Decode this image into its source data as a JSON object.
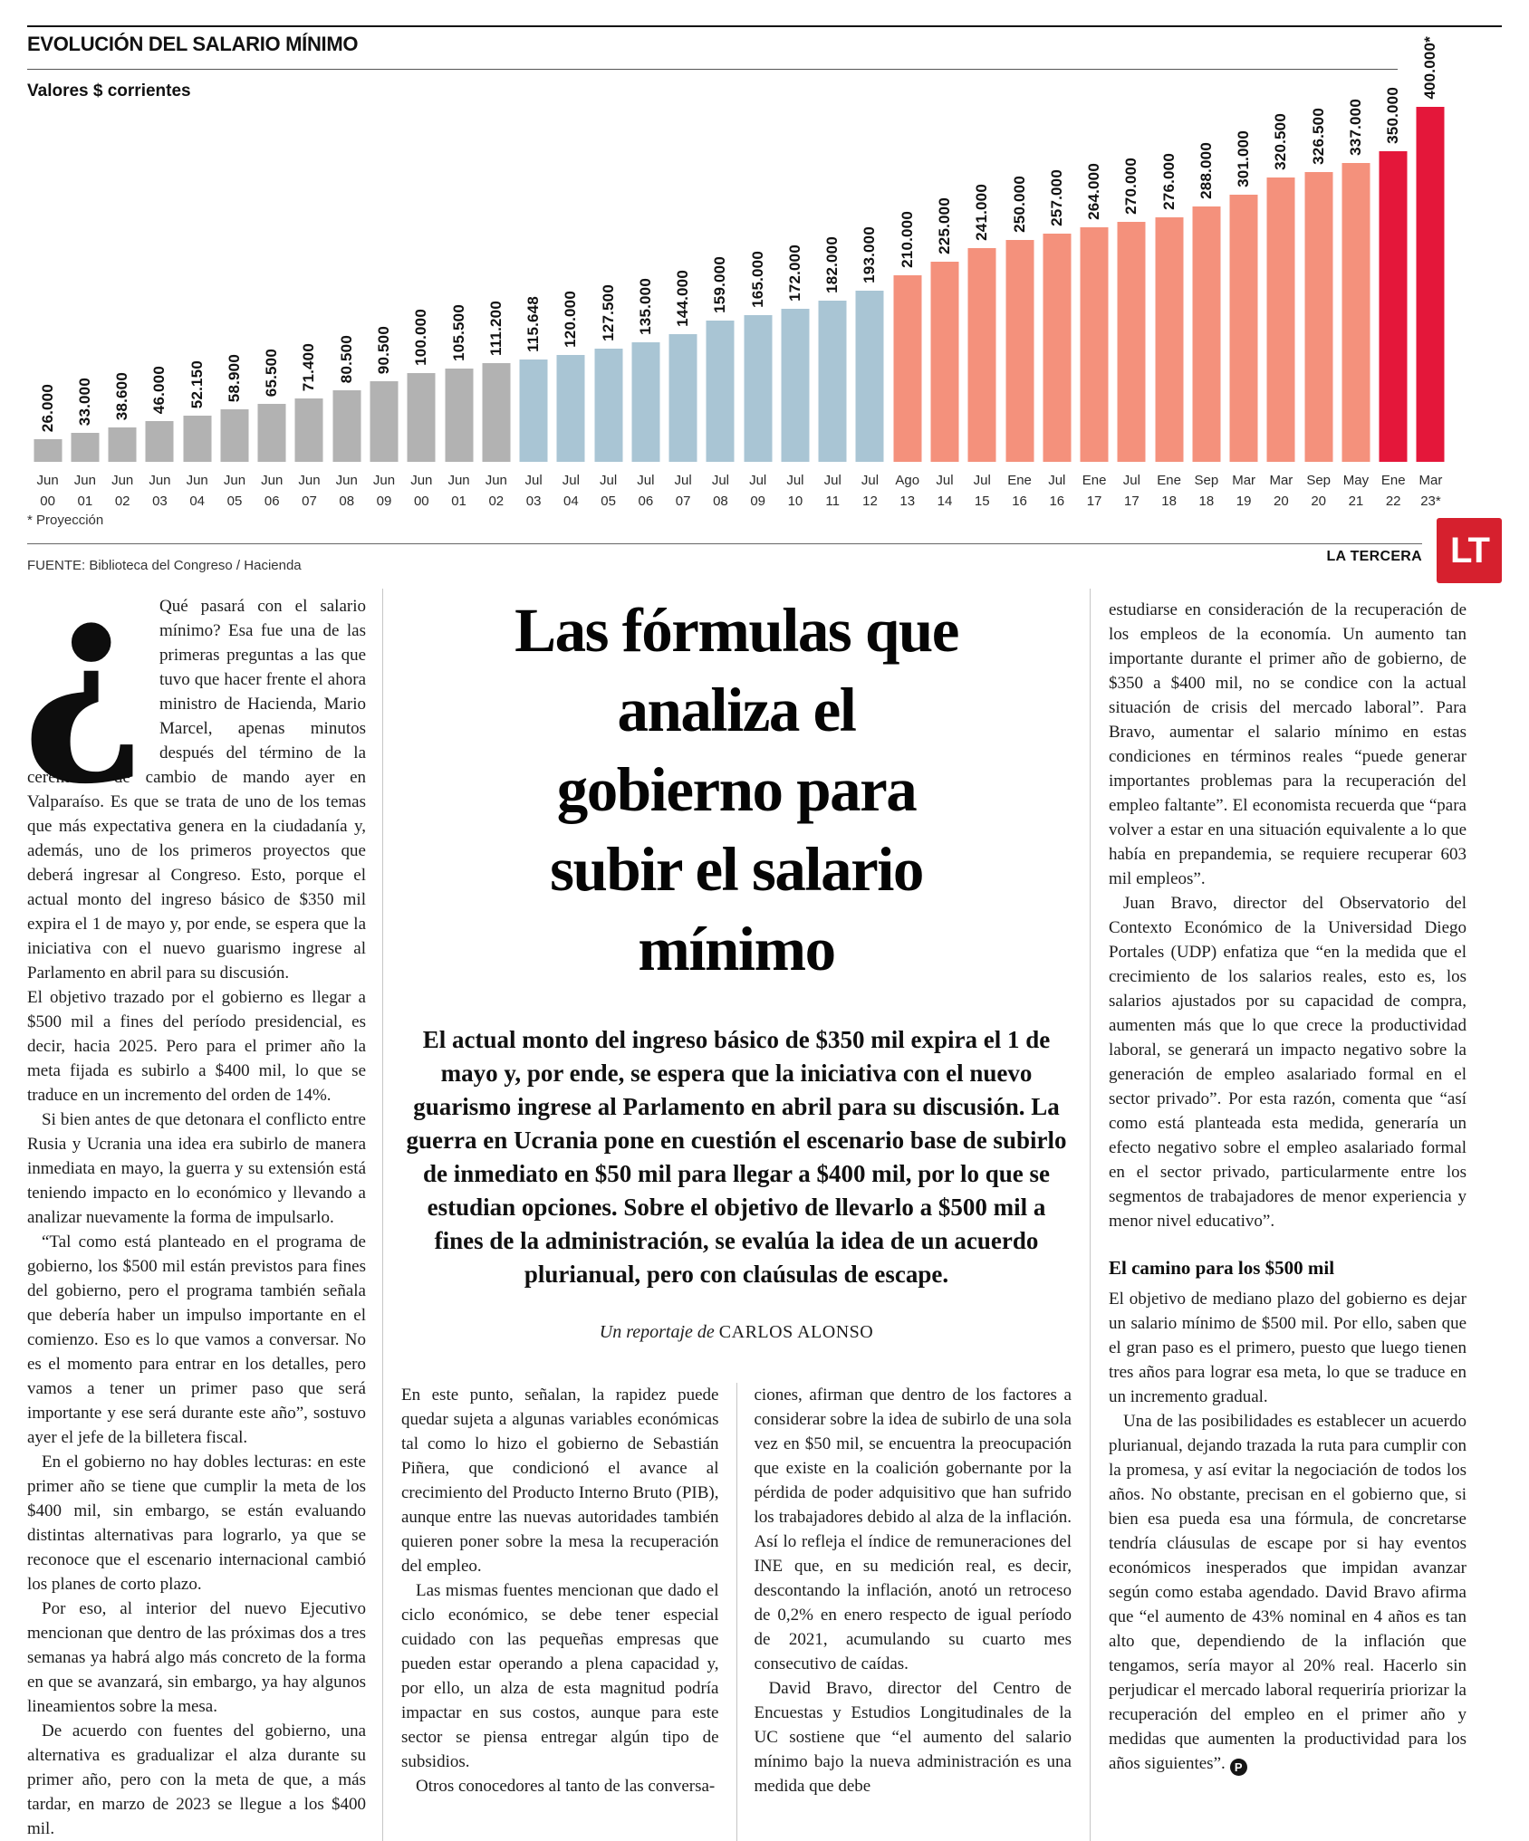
{
  "chart": {
    "title": "EVOLUCIÓN DEL SALARIO MÍNIMO",
    "subtitle": "Valores $ corrientes",
    "footnote": "* Proyección",
    "source": "FUENTE: Biblioteca del Congreso / Hacienda",
    "brand_name": "LA TERCERA",
    "logo_text": "LT",
    "logo_color": "#d6202e"
  },
  "chart_data": {
    "type": "bar",
    "title": "EVOLUCIÓN DEL SALARIO MÍNIMO",
    "subtitle": "Valores $ corrientes",
    "ylim": [
      0,
      400000
    ],
    "grid": false,
    "categories": [
      [
        "Jun",
        "00"
      ],
      [
        "Jun",
        "01"
      ],
      [
        "Jun",
        "02"
      ],
      [
        "Jun",
        "03"
      ],
      [
        "Jun",
        "04"
      ],
      [
        "Jun",
        "05"
      ],
      [
        "Jun",
        "06"
      ],
      [
        "Jun",
        "07"
      ],
      [
        "Jun",
        "08"
      ],
      [
        "Jun",
        "09"
      ],
      [
        "Jun",
        "00"
      ],
      [
        "Jun",
        "01"
      ],
      [
        "Jun",
        "02"
      ],
      [
        "Jul",
        "03"
      ],
      [
        "Jul",
        "04"
      ],
      [
        "Jul",
        "05"
      ],
      [
        "Jul",
        "06"
      ],
      [
        "Jul",
        "07"
      ],
      [
        "Jul",
        "08"
      ],
      [
        "Jul",
        "09"
      ],
      [
        "Jul",
        "10"
      ],
      [
        "Jul",
        "11"
      ],
      [
        "Jul",
        "12"
      ],
      [
        "Ago",
        "13"
      ],
      [
        "Jul",
        "14"
      ],
      [
        "Jul",
        "15"
      ],
      [
        "Ene",
        "16"
      ],
      [
        "Jul",
        "16"
      ],
      [
        "Ene",
        "17"
      ],
      [
        "Jul",
        "17"
      ],
      [
        "Ene",
        "18"
      ],
      [
        "Sep",
        "18"
      ],
      [
        "Mar",
        "19"
      ],
      [
        "Mar",
        "20"
      ],
      [
        "Sep",
        "20"
      ],
      [
        "May",
        "21"
      ],
      [
        "Ene",
        "22"
      ],
      [
        "Mar",
        "23*"
      ]
    ],
    "values": [
      26000,
      33000,
      38600,
      46000,
      52150,
      58900,
      65500,
      71400,
      80500,
      90500,
      100000,
      105500,
      111200,
      115648,
      120000,
      127500,
      135000,
      144000,
      159000,
      165000,
      172000,
      182000,
      193000,
      210000,
      225000,
      241000,
      250000,
      257000,
      264000,
      270000,
      276000,
      288000,
      301000,
      320500,
      326500,
      337000,
      350000,
      400000
    ],
    "value_labels": [
      "26.000",
      "33.000",
      "38.600",
      "46.000",
      "52.150",
      "58.900",
      "65.500",
      "71.400",
      "80.500",
      "90.500",
      "100.000",
      "105.500",
      "111.200",
      "115.648",
      "120.000",
      "127.500",
      "135.000",
      "144.000",
      "159.000",
      "165.000",
      "172.000",
      "182.000",
      "193.000",
      "210.000",
      "225.000",
      "241.000",
      "250.000",
      "257.000",
      "264.000",
      "270.000",
      "276.000",
      "288.000",
      "301.000",
      "320.500",
      "326.500",
      "337.000",
      "350.000",
      "400.000*"
    ],
    "bar_colors": [
      "gray",
      "gray",
      "gray",
      "gray",
      "gray",
      "gray",
      "gray",
      "gray",
      "gray",
      "gray",
      "gray",
      "gray",
      "gray",
      "blue",
      "blue",
      "blue",
      "blue",
      "blue",
      "blue",
      "blue",
      "blue",
      "blue",
      "blue",
      "salmon",
      "salmon",
      "salmon",
      "salmon",
      "salmon",
      "salmon",
      "salmon",
      "salmon",
      "salmon",
      "salmon",
      "salmon",
      "salmon",
      "salmon",
      "red",
      "red"
    ],
    "palette": {
      "gray": "#b2b2b2",
      "blue": "#a9c5d4",
      "salmon": "#f4917c",
      "red": "#e4173a"
    },
    "legend_position": "none"
  },
  "article": {
    "headline_lines": [
      "Las fórmulas que",
      "analiza el",
      "gobierno para",
      "subir el salario",
      "mínimo"
    ],
    "lede": "El actual monto del ingreso básico de $350 mil expira el 1 de mayo y, por ende, se espera que la iniciativa con el nuevo guarismo ingrese al Parlamento en abril para su discusión. La guerra en Ucrania pone en cuestión el escenario base de subirlo de inmediato en $50 mil para llegar a $400 mil, por lo que se estudian opciones. Sobre el objetivo de llevarlo a $500 mil a fines de la administración, se evalúa la idea de un acuerdo plurianual, pero con claúsulas de escape.",
    "byline_prefix": "Un reportaje de ",
    "byline_author": "CARLOS ALONSO",
    "left": {
      "dropcap": "¿",
      "first_paragraph": "Qué pasará con el salario mínimo? Esa fue una de las primeras preguntas a las que tuvo que hacer frente el ahora ministro de Hacienda, Mario Marcel, apenas minutos después del término de la ceremonia de cambio de mando ayer en Valparaíso. Es que se trata de uno de los temas que más expectativa genera en la ciudadanía y, además, uno de los primeros proyectos que deberá ingresar al Congreso. Esto, porque el actual monto del ingreso básico de $350 mil expira el 1 de mayo y, por ende, se espera que la iniciativa con el nuevo guarismo ingrese al Parlamento en abril para su discusión.",
      "paragraphs": [
        "El objetivo trazado por el gobierno es llegar a $500 mil a fines del período presidencial, es decir, hacia 2025. Pero para el primer año la meta fijada es subirlo a $400 mil, lo que se traduce en un incremento del orden de 14%.",
        "Si bien antes de que detonara el conflicto entre Rusia y Ucrania una idea era subirlo de manera inmediata en mayo, la guerra y su extensión está teniendo impacto en lo económico y llevando a analizar nuevamente la forma de impulsarlo.",
        "“Tal como está planteado en el programa de gobierno, los $500 mil están previstos para fines del gobierno, pero el programa también señala que debería haber un impulso importante en el comienzo. Eso es lo que vamos a conversar. No es el momento para entrar en los detalles, pero vamos a tener un primer paso que será importante y ese será durante este año”, sostuvo ayer el jefe de la billetera fiscal.",
        "En el gobierno no hay dobles lecturas: en este primer año se tiene que cumplir la meta de los $400 mil, sin embargo, se están evaluando distintas alternativas para lograrlo, ya que se reconoce que el escenario internacional cambió los planes de corto plazo.",
        "Por eso, al interior del nuevo Ejecutivo mencionan que dentro de las próximas dos a tres semanas ya habrá algo más concreto de la forma en que se avanzará, sin embargo, ya hay algunos lineamientos sobre la mesa.",
        "De acuerdo con fuentes del gobierno, una alternativa es gradualizar el alza durante su primer año, pero con la meta de que, a más tardar, en marzo de 2023 se llegue a los $400 mil."
      ]
    },
    "center_col_a": [
      "En este punto, señalan, la rapidez puede quedar sujeta a algunas variables económicas tal como lo hizo el gobierno de Sebastián Piñera, que condicionó el avance al crecimiento del Producto Interno Bruto (PIB), aunque entre las nuevas autoridades también quieren poner sobre la mesa la recuperación del empleo.",
      "Las mismas fuentes mencionan que dado el ciclo económico, se debe tener especial cuidado con las pequeñas empresas que pueden estar operando a plena capacidad y, por ello, un alza de esta magnitud podría impactar en sus costos, aunque para este sector se piensa entregar algún tipo de subsidios.",
      "Otros conocedores al tanto de las conversa-"
    ],
    "center_col_b": [
      "ciones, afirman que dentro de los factores a considerar sobre la idea de subirlo de una sola vez en $50 mil, se encuentra la preocupación que existe en la coalición gobernante por la pérdida de poder adquisitivo que han sufrido los trabajadores debido al alza de la inflación. Así lo refleja el índice de remuneraciones del INE que, en su medición real, es decir, descontando la inflación, anotó un retroceso de 0,2% en enero respecto de igual período de 2021, acumulando su cuarto mes consecutivo de caídas.",
      "David Bravo, director del Centro de Encuestas y Estudios Longitudinales de la UC sostiene que “el aumento del salario mínimo bajo la nueva administración es una medida que debe"
    ],
    "right_top": [
      "estudiarse en consideración de la recuperación de los empleos de la economía. Un aumento tan importante durante el primer año de gobierno, de $350 a $400 mil, no se condice con la actual situación de crisis del mercado laboral”. Para Bravo, aumentar el salario mínimo en estas condiciones en términos reales “puede generar importantes problemas para la recuperación del empleo faltante”. El economista recuerda que “para volver a estar en una situación equivalente a lo que había en prepandemia, se requiere recuperar 603 mil empleos”.",
      "Juan Bravo, director del Observatorio del Contexto Económico de la Universidad Diego Portales (UDP) enfatiza que “en la medida que el crecimiento de los salarios reales, esto es, los salarios ajustados por su capacidad de compra, aumenten más que lo que crece la productividad laboral, se generará un impacto negativo sobre la generación de empleo asalariado formal en el sector privado”. Por esta razón, comenta que “así como está planteada esta medida, generaría un efecto negativo sobre el empleo asalariado formal en el sector privado, particularmente entre los segmentos de trabajadores de menor experiencia y menor nivel educativo”."
    ],
    "subhead": "El camino para los $500 mil",
    "right_bottom": [
      "El objetivo de mediano plazo del gobierno es dejar un salario mínimo de $500 mil. Por ello, saben que el gran paso es el primero, puesto que luego tienen tres años para lograr esa meta, lo que se traduce en un incremento gradual.",
      "Una de las posibilidades es establecer un acuerdo plurianual, dejando trazada la ruta para cumplir con la promesa, y así evitar la negociación de todos los años. No obstante, precisan en el gobierno que, si bien esa pueda esa una fórmula, de concretarse tendría cláusulas de escape por si hay eventos económicos inesperados que impidan avanzar según como estaba agendado. David Bravo afirma que “el aumento de 43% nominal en 4 años es tan alto que, dependiendo de la inflación que tengamos, sería mayor al 20% real. Hacerlo sin perjudicar el mercado laboral requeriría priorizar la recuperación del empleo en el primer año y medidas que aumenten la productividad para los años siguientes”."
    ],
    "endmark": "P"
  }
}
